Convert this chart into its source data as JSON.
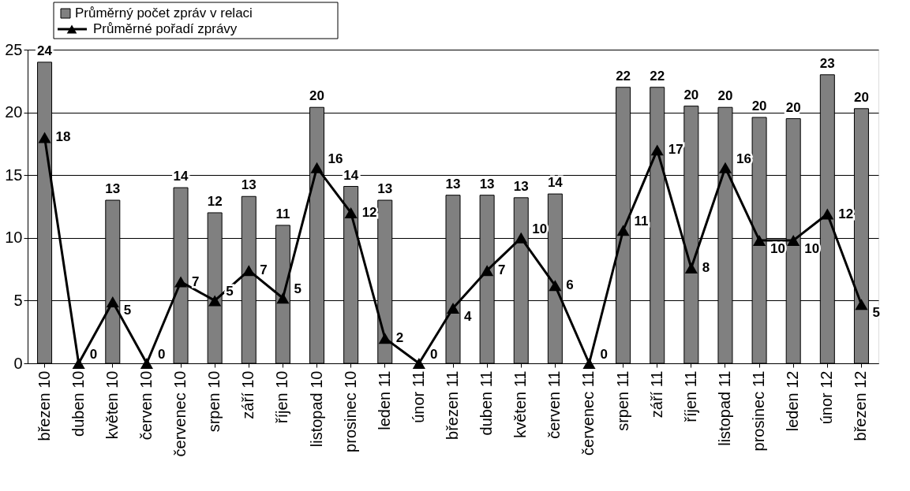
{
  "chart_data": {
    "type": "bar",
    "categories": [
      "březen 10",
      "duben 10",
      "květen 10",
      "červen 10",
      "červenec 10",
      "srpen 10",
      "září 10",
      "říjen 10",
      "listopad 10",
      "prosinec 10",
      "leden 11",
      "únor 11",
      "březen 11",
      "duben 11",
      "květen 11",
      "červen 11",
      "červenec 11",
      "srpen 11",
      "září 11",
      "říjen 11",
      "listopad 11",
      "prosinec 11",
      "leden 12",
      "únor 12",
      "březen 12"
    ],
    "series": [
      {
        "name": "Průměrný počet zpráv v relaci",
        "color": "#808080",
        "values": [
          24,
          null,
          13,
          null,
          14,
          12,
          13.3,
          11,
          20.4,
          14.1,
          13,
          null,
          13.4,
          13.4,
          13.2,
          13.5,
          null,
          22,
          22,
          20.5,
          20.4,
          19.6,
          19.5,
          23,
          20.3
        ],
        "value_labels": [
          "24",
          null,
          "13",
          null,
          "14",
          "12",
          "13",
          "11",
          "20",
          "14",
          "13",
          null,
          "13",
          "13",
          "13",
          "14",
          null,
          "22",
          "22",
          "20",
          "20",
          "20",
          "20",
          "23",
          "20"
        ]
      },
      {
        "name": "Průměrné pořadí zprávy",
        "type": "line",
        "color": "#000000",
        "marker": "triangle",
        "values": [
          18,
          0,
          4.9,
          0,
          6.5,
          5,
          7.4,
          5.2,
          15.6,
          12,
          2,
          0,
          4.4,
          7.4,
          10,
          6.2,
          0,
          10.6,
          17,
          7.6,
          15.6,
          9.8,
          9.8,
          11.9,
          4.7
        ],
        "value_labels": [
          "18",
          "0",
          "5",
          "0",
          "7",
          "5",
          "7",
          "5",
          "16",
          "12",
          "2",
          "0",
          "4",
          "7",
          "10",
          "6",
          "0",
          "11",
          "17",
          "8",
          "16",
          "10",
          "10",
          "12",
          "5"
        ]
      }
    ],
    "ylim": [
      0,
      25
    ],
    "yticks": [
      0,
      5,
      10,
      15,
      20,
      25
    ],
    "grid": "y",
    "legend": "top left"
  }
}
